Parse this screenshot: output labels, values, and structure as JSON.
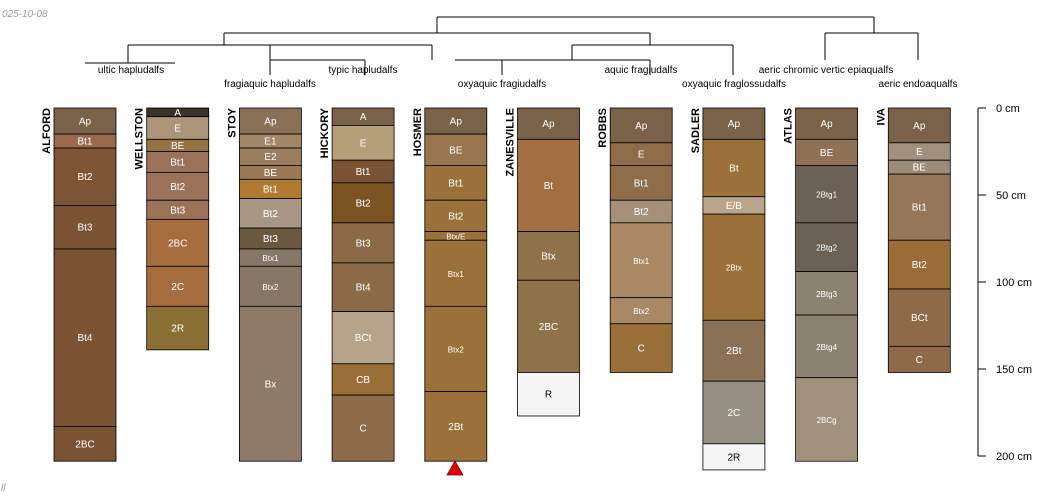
{
  "date_label": "025-10-08",
  "corner_mark": "ll",
  "depth_axis": {
    "unit": "cm",
    "max": 200,
    "ticks": [
      {
        "value": 0,
        "label": "0 cm"
      },
      {
        "value": 50,
        "label": "50 cm"
      },
      {
        "value": 100,
        "label": "100 cm"
      },
      {
        "value": 150,
        "label": "150 cm"
      },
      {
        "value": 200,
        "label": "200 cm"
      }
    ]
  },
  "taxa": [
    "ultic hapludalfs",
    "fragiaquic hapludalfs",
    "typic hapludalfs",
    "oxyaquic fragiudalfs",
    "aquic fragiudalfs",
    "oxyaquic fraglossudalfs",
    "aeric chromic vertic epiaqualfs",
    "aeric endoaqualfs"
  ],
  "profiles": [
    {
      "name": "ALFORD",
      "horizons": [
        {
          "name": "Ap",
          "top": 0,
          "bottom": 15,
          "color": "#7a6248"
        },
        {
          "name": "Bt1",
          "top": 15,
          "bottom": 23,
          "color": "#9b6a4d"
        },
        {
          "name": "Bt2",
          "top": 23,
          "bottom": 56,
          "color": "#7d5436"
        },
        {
          "name": "Bt3",
          "top": 56,
          "bottom": 81,
          "color": "#7a5234"
        },
        {
          "name": "Bt4",
          "top": 81,
          "bottom": 183,
          "color": "#7a5234"
        },
        {
          "name": "2BC",
          "top": 183,
          "bottom": 203,
          "color": "#7a5234"
        }
      ]
    },
    {
      "name": "WELLSTON",
      "horizons": [
        {
          "name": "A",
          "top": 0,
          "bottom": 5,
          "color": "#3a3128"
        },
        {
          "name": "E",
          "top": 5,
          "bottom": 18,
          "color": "#ab9679"
        },
        {
          "name": "BE",
          "top": 18,
          "bottom": 25,
          "color": "#957243"
        },
        {
          "name": "Bt1",
          "top": 25,
          "bottom": 37,
          "color": "#9a7259"
        },
        {
          "name": "Bt2",
          "top": 37,
          "bottom": 53,
          "color": "#9a7259"
        },
        {
          "name": "Bt3",
          "top": 53,
          "bottom": 64,
          "color": "#9a7259"
        },
        {
          "name": "2BC",
          "top": 64,
          "bottom": 91,
          "color": "#a56d3d"
        },
        {
          "name": "2C",
          "top": 91,
          "bottom": 114,
          "color": "#a56d3d"
        },
        {
          "name": "2R",
          "top": 114,
          "bottom": 139,
          "color": "#8a7133"
        }
      ]
    },
    {
      "name": "STOY",
      "horizons": [
        {
          "name": "Ap",
          "top": 0,
          "bottom": 15,
          "color": "#8a7156"
        },
        {
          "name": "E1",
          "top": 15,
          "bottom": 23,
          "color": "#a28667"
        },
        {
          "name": "E2",
          "top": 23,
          "bottom": 33,
          "color": "#9a7e5e"
        },
        {
          "name": "BE",
          "top": 33,
          "bottom": 41,
          "color": "#9a7a55"
        },
        {
          "name": "Bt1",
          "top": 41,
          "bottom": 52,
          "color": "#b07a30"
        },
        {
          "name": "Bt2",
          "top": 52,
          "bottom": 69,
          "color": "#a79683"
        },
        {
          "name": "Bt3",
          "top": 69,
          "bottom": 81,
          "color": "#6b5840"
        },
        {
          "name": "Btx1",
          "top": 81,
          "bottom": 91,
          "color": "#857666"
        },
        {
          "name": "Btx2",
          "top": 91,
          "bottom": 114,
          "color": "#857666"
        },
        {
          "name": "Bx",
          "top": 114,
          "bottom": 203,
          "color": "#8e7a66"
        }
      ]
    },
    {
      "name": "HICKORY",
      "horizons": [
        {
          "name": "A",
          "top": 0,
          "bottom": 10,
          "color": "#7a6248"
        },
        {
          "name": "E",
          "top": 10,
          "bottom": 30,
          "color": "#b59e7a"
        },
        {
          "name": "Bt1",
          "top": 30,
          "bottom": 43,
          "color": "#7a5234"
        },
        {
          "name": "Bt2",
          "top": 43,
          "bottom": 66,
          "color": "#7b5323"
        },
        {
          "name": "Bt3",
          "top": 66,
          "bottom": 89,
          "color": "#8b6a47"
        },
        {
          "name": "Bt4",
          "top": 89,
          "bottom": 117,
          "color": "#8b6a47"
        },
        {
          "name": "BCt",
          "top": 117,
          "bottom": 147,
          "color": "#b7a38a"
        },
        {
          "name": "CB",
          "top": 147,
          "bottom": 165,
          "color": "#9a6f37"
        },
        {
          "name": "C",
          "top": 165,
          "bottom": 203,
          "color": "#8c6a4a"
        }
      ]
    },
    {
      "name": "HOSMER",
      "horizons": [
        {
          "name": "Ap",
          "top": 0,
          "bottom": 15,
          "color": "#7a6248"
        },
        {
          "name": "BE",
          "top": 15,
          "bottom": 33,
          "color": "#99754e"
        },
        {
          "name": "Bt1",
          "top": 33,
          "bottom": 53,
          "color": "#9a7138"
        },
        {
          "name": "Bt2",
          "top": 53,
          "bottom": 71,
          "color": "#9a7138"
        },
        {
          "name": "Btx/E",
          "top": 71,
          "bottom": 76,
          "color": "#9a7138"
        },
        {
          "name": "Btx1",
          "top": 76,
          "bottom": 114,
          "color": "#9a7138"
        },
        {
          "name": "Btx2",
          "top": 114,
          "bottom": 163,
          "color": "#9a7138"
        },
        {
          "name": "2Bt",
          "top": 163,
          "bottom": 203,
          "color": "#9a7138"
        }
      ]
    },
    {
      "name": "ZANESVILLE",
      "horizons": [
        {
          "name": "Ap",
          "top": 0,
          "bottom": 18,
          "color": "#7a6248"
        },
        {
          "name": "Bt",
          "top": 18,
          "bottom": 71,
          "color": "#a36e3f"
        },
        {
          "name": "Btx",
          "top": 71,
          "bottom": 99,
          "color": "#8f7249"
        },
        {
          "name": "2BC",
          "top": 99,
          "bottom": 152,
          "color": "#8f7249"
        },
        {
          "name": "R",
          "top": 152,
          "bottom": 177,
          "color": "#f5f5f5"
        }
      ]
    },
    {
      "name": "ROBBS",
      "horizons": [
        {
          "name": "Ap",
          "top": 0,
          "bottom": 20,
          "color": "#7a6248"
        },
        {
          "name": "E",
          "top": 20,
          "bottom": 33,
          "color": "#8f6c48"
        },
        {
          "name": "Bt1",
          "top": 33,
          "bottom": 53,
          "color": "#8f6c48"
        },
        {
          "name": "Bt2",
          "top": 53,
          "bottom": 66,
          "color": "#a68f78"
        },
        {
          "name": "Btx1",
          "top": 66,
          "bottom": 109,
          "color": "#a98964"
        },
        {
          "name": "Btx2",
          "top": 109,
          "bottom": 124,
          "color": "#a98964"
        },
        {
          "name": "C",
          "top": 124,
          "bottom": 152,
          "color": "#9a703a"
        }
      ]
    },
    {
      "name": "SADLER",
      "horizons": [
        {
          "name": "Ap",
          "top": 0,
          "bottom": 18,
          "color": "#7a6248"
        },
        {
          "name": "Bt",
          "top": 18,
          "bottom": 51,
          "color": "#9a7138"
        },
        {
          "name": "E/B",
          "top": 51,
          "bottom": 61,
          "color": "#b8a58c"
        },
        {
          "name": "2Btx",
          "top": 61,
          "bottom": 122,
          "color": "#9a7138"
        },
        {
          "name": "2Bt",
          "top": 122,
          "bottom": 157,
          "color": "#8a7156"
        },
        {
          "name": "2C",
          "top": 157,
          "bottom": 193,
          "color": "#969084"
        },
        {
          "name": "2R",
          "top": 193,
          "bottom": 208,
          "color": "#f5f5f5"
        }
      ]
    },
    {
      "name": "ATLAS",
      "horizons": [
        {
          "name": "Ap",
          "top": 0,
          "bottom": 18,
          "color": "#7a6248"
        },
        {
          "name": "BE",
          "top": 18,
          "bottom": 33,
          "color": "#8f7256"
        },
        {
          "name": "2Btg1",
          "top": 33,
          "bottom": 66,
          "color": "#6b6154"
        },
        {
          "name": "2Btg2",
          "top": 66,
          "bottom": 94,
          "color": "#6b6154"
        },
        {
          "name": "2Btg3",
          "top": 94,
          "bottom": 119,
          "color": "#8b8272"
        },
        {
          "name": "2Btg4",
          "top": 119,
          "bottom": 155,
          "color": "#8b8272"
        },
        {
          "name": "2BCg",
          "top": 155,
          "bottom": 203,
          "color": "#a0927a"
        }
      ]
    },
    {
      "name": "IVA",
      "horizons": [
        {
          "name": "Ap",
          "top": 0,
          "bottom": 20,
          "color": "#7a6248"
        },
        {
          "name": "E",
          "top": 20,
          "bottom": 30,
          "color": "#a0917f"
        },
        {
          "name": "BE",
          "top": 30,
          "bottom": 38,
          "color": "#9a8a76"
        },
        {
          "name": "Bt1",
          "top": 38,
          "bottom": 76,
          "color": "#957658"
        },
        {
          "name": "Bt2",
          "top": 76,
          "bottom": 104,
          "color": "#9a6c38"
        },
        {
          "name": "BCt",
          "top": 104,
          "bottom": 137,
          "color": "#8e6a4a"
        },
        {
          "name": "C",
          "top": 137,
          "bottom": 152,
          "color": "#8e6a4a"
        }
      ]
    }
  ]
}
